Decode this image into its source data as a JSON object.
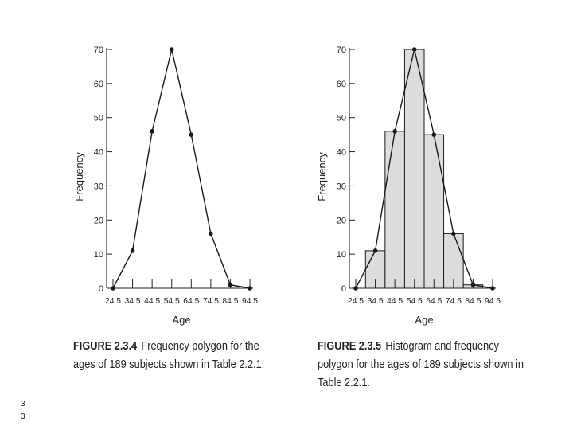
{
  "chart_data": [
    {
      "type": "line",
      "figure_label": "FIGURE 2.3.4",
      "caption": "Frequency polygon for the ages of 189 subjects shown in Table 2.2.1.",
      "xlabel": "Age",
      "ylabel": "Frequency",
      "x": [
        24.5,
        34.5,
        44.5,
        54.5,
        64.5,
        74.5,
        84.5,
        94.5
      ],
      "x_tick_labels": [
        "24.5",
        "34.5",
        "44.5",
        "54.5",
        "64.5",
        "74.5",
        "84.5",
        "94.5"
      ],
      "series": [
        {
          "values": [
            0,
            11,
            46,
            70,
            45,
            16,
            1,
            0
          ]
        }
      ],
      "ylim": [
        0,
        70
      ],
      "y_ticks": [
        0,
        10,
        20,
        30,
        40,
        50,
        60,
        70
      ],
      "grid": false
    },
    {
      "type": "bar",
      "figure_label": "FIGURE 2.3.5",
      "caption": "Histogram and frequency polygon for the ages of 189 subjects shown in Table 2.2.1.",
      "xlabel": "Age",
      "ylabel": "Frequency",
      "x": [
        24.5,
        34.5,
        44.5,
        54.5,
        64.5,
        74.5,
        84.5,
        94.5
      ],
      "x_tick_labels": [
        "24.5",
        "34.5",
        "44.5",
        "54.5",
        "64.5",
        "74.5",
        "84.5",
        "94.5"
      ],
      "bins": [
        {
          "from": 29.5,
          "to": 39.5,
          "value": 11
        },
        {
          "from": 39.5,
          "to": 49.5,
          "value": 46
        },
        {
          "from": 49.5,
          "to": 59.5,
          "value": 70
        },
        {
          "from": 59.5,
          "to": 69.5,
          "value": 45
        },
        {
          "from": 69.5,
          "to": 79.5,
          "value": 16
        },
        {
          "from": 79.5,
          "to": 89.5,
          "value": 1
        }
      ],
      "series": [
        {
          "values": [
            0,
            11,
            46,
            70,
            45,
            16,
            1,
            0
          ]
        }
      ],
      "ylim": [
        0,
        70
      ],
      "y_ticks": [
        0,
        10,
        20,
        30,
        40,
        50,
        60,
        70
      ],
      "grid": false
    }
  ],
  "page_numbers": [
    "3",
    "3"
  ],
  "colors": {
    "line": "#1a1a1a",
    "bar_fill": "#dcdcdc",
    "axis": "#222222"
  }
}
